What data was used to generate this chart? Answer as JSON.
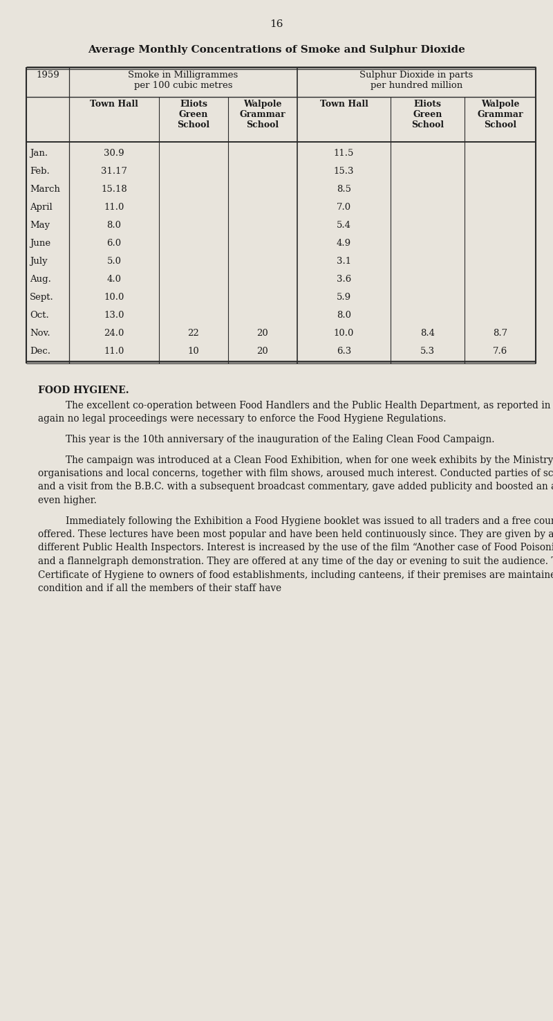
{
  "page_number": "16",
  "bg_color": "#e8e4dc",
  "title": "Average Monthly Concentrations of Smoke and Sulphur Dioxide",
  "table_header_row1_left": "Smoke in Milligrammes\nper 100 cubic metres",
  "table_header_row1_right": "Sulphur Dioxide in parts\nper hundred million",
  "year": "1959",
  "col_headers": [
    "Town Hall",
    "Eliots\nGreen\nSchool",
    "Walpole\nGrammar\nSchool",
    "Town Hall",
    "Eliots\nGreen\nSchool",
    "Walpole\nGrammar\nSchool"
  ],
  "months": [
    "Jan.",
    "Feb.",
    "March",
    "April",
    "May",
    "June",
    "July",
    "Aug.",
    "Sept.",
    "Oct.",
    "Nov.",
    "Dec."
  ],
  "smoke_town_hall": [
    "30.9",
    "31.17",
    "15.18",
    "11.0",
    "8.0",
    "6.0",
    "5.0",
    "4.0",
    "10.0",
    "13.0",
    "24.0",
    "11.0"
  ],
  "smoke_eliots": [
    "",
    "",
    "",
    "",
    "",
    "",
    "",
    "",
    "",
    "",
    "22",
    "10"
  ],
  "smoke_walpole": [
    "",
    "",
    "",
    "",
    "",
    "",
    "",
    "",
    "",
    "",
    "20",
    "20"
  ],
  "so2_town_hall": [
    "11.5",
    "15.3",
    "8.5",
    "7.0",
    "5.4",
    "4.9",
    "3.1",
    "3.6",
    "5.9",
    "8.0",
    "10.0",
    "6.3"
  ],
  "so2_eliots": [
    "",
    "",
    "",
    "",
    "",
    "",
    "",
    "",
    "",
    "",
    "8.4",
    "5.3"
  ],
  "so2_walpole": [
    "",
    "",
    "",
    "",
    "",
    "",
    "",
    "",
    "",
    "",
    "8.7",
    "7.6"
  ],
  "food_hygiene_title": "FOOD HYGIENE.",
  "para1": "The excellent co-operation between Food Handlers and the Public Health Department, as reported in previous years, continues and again no legal proceedings were necessary to enforce the Food Hygiene Regulations.",
  "para2": "This year is the 10th anniversary of the inauguration of the Ealing Clean Food Campaign.",
  "para3": "The campaign was introduced at a Clean Food Exhibition, when for one week exhibits by the Ministry of Food, large industrial organisations and local concerns, together with film shows, aroused much interest. Conducted parties of school children were arranged and a visit from the B.B.C. with a subsequent broadcast commentary, gave added publicity and boosted an already satisfactory attendance even higher.",
  "para4": "Immediately following the Exhibition a Food Hygiene booklet was issued to all traders and a free course of Food Hygiene lectures offered. These lectures have been most popular and have been held continuously since. They are given by a Medical Officer and three different Public Health Inspectors. Interest is increased by the use of the film “Another case of Food Poisoning”, our own film strip and a flannelgraph demonstration. They are offered at any time of the day or evening to suit the audience. The Council awards a handsome Certificate of Hygiene to owners of food establishments, including canteens, if their premises are maintained in a really first-class condition and if all the members of their staff have"
}
